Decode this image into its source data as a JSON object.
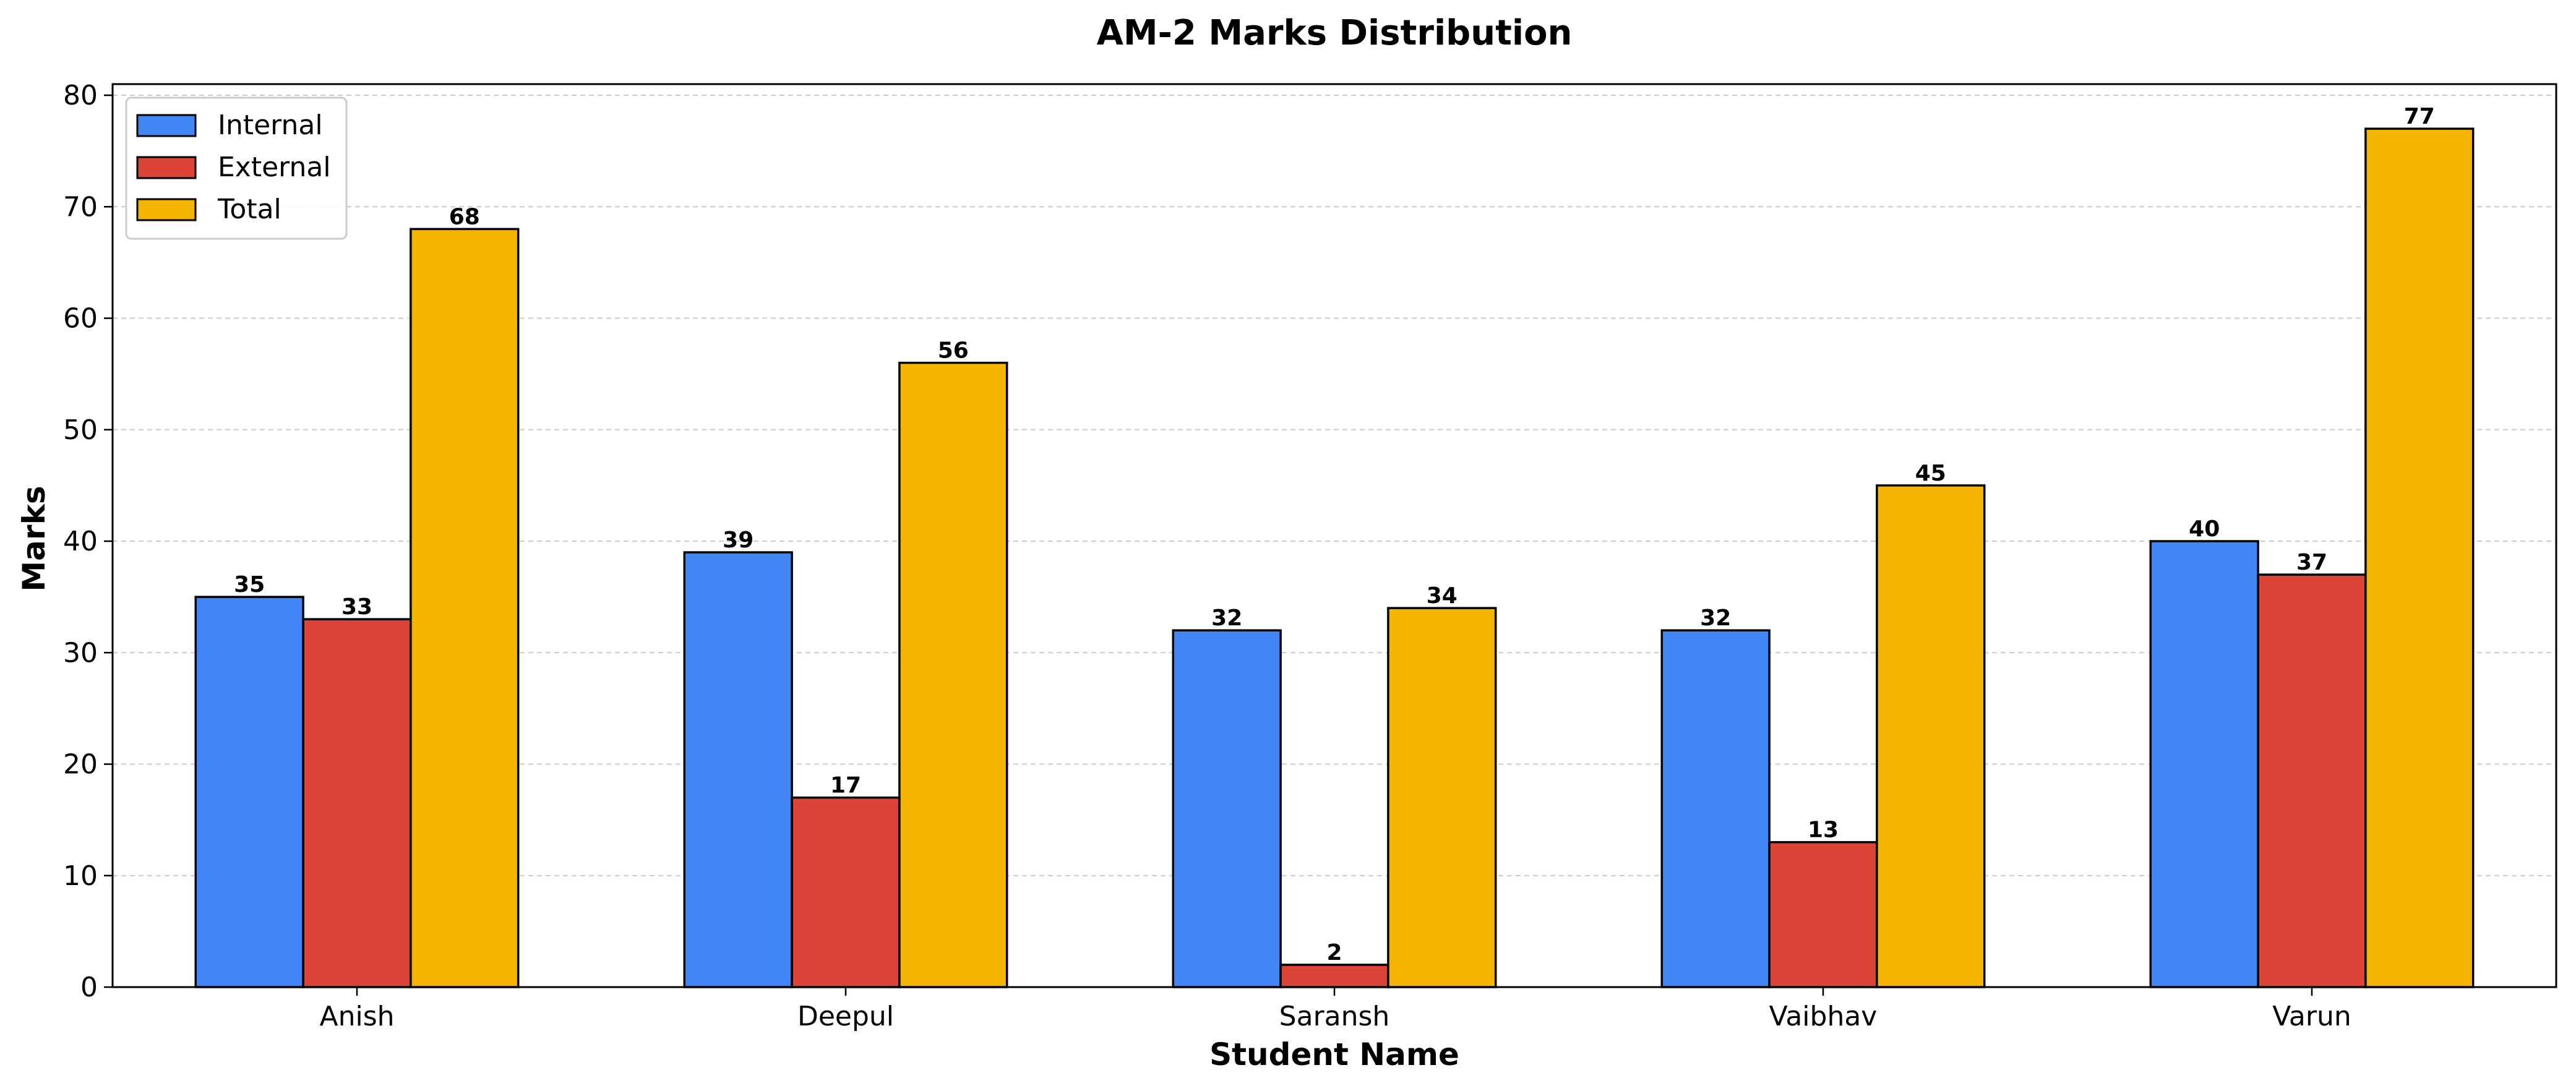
{
  "chart_data": {
    "type": "bar",
    "title": "AM-2 Marks Distribution",
    "xlabel": "Student Name",
    "ylabel": "Marks",
    "categories": [
      "Anish",
      "Deepul",
      "Saransh",
      "Vaibhav",
      "Varun"
    ],
    "series": [
      {
        "name": "Internal",
        "color": "#4285F4",
        "values": [
          35,
          39,
          32,
          32,
          40
        ]
      },
      {
        "name": "External",
        "color": "#DB4437",
        "values": [
          33,
          17,
          2,
          13,
          37
        ]
      },
      {
        "name": "Total",
        "color": "#F4B400",
        "values": [
          68,
          56,
          34,
          45,
          77
        ]
      }
    ],
    "ylim": [
      0,
      81
    ],
    "yticks": [
      "0",
      "10",
      "20",
      "30",
      "40",
      "50",
      "60",
      "70",
      "80"
    ],
    "grid": "y-dashed",
    "legend_position": "top-left",
    "data_labels": true
  }
}
